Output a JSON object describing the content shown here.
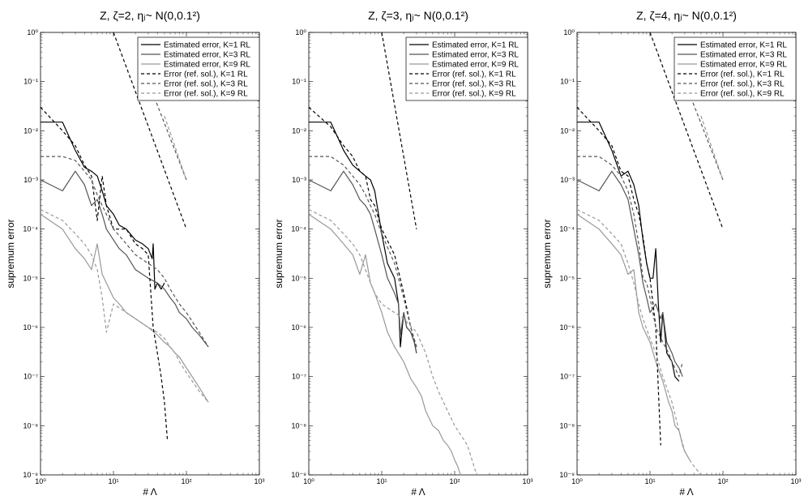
{
  "chart_data": [
    {
      "type": "line",
      "title": "Z, ζ=2, ηⱼ~ N(0,0.1²)",
      "xlabel": "# Λ",
      "ylabel": "supremum error",
      "xscale": "log",
      "yscale": "log",
      "xlim": [
        1,
        1000
      ],
      "ylim": [
        1e-09,
        1
      ],
      "x_ticks": [
        "10⁰",
        "10¹",
        "10²",
        "10³"
      ],
      "y_ticks": [
        "10⁻⁹",
        "10⁻⁸",
        "10⁻⁷",
        "10⁻⁶",
        "10⁻⁵",
        "10⁻⁴",
        "10⁻³",
        "10⁻²",
        "10⁻¹",
        "10⁰"
      ],
      "grid": false,
      "legend_position": "top-right",
      "series": [
        {
          "name": "Estimated error, K=1 RL",
          "color": "#000000",
          "dash": "solid",
          "x": [
            1,
            2,
            3,
            4,
            5,
            6,
            7,
            8,
            10,
            12,
            15,
            20,
            25,
            30,
            34,
            35,
            37,
            40,
            45,
            50
          ],
          "y": [
            0.015,
            0.015,
            0.004,
            0.0018,
            0.0015,
            0.0012,
            0.0006,
            0.0003,
            0.0002,
            0.00012,
            0.0001,
            6e-05,
            5e-05,
            4e-05,
            2.5e-05,
            5e-05,
            6e-06,
            8e-06,
            6e-06,
            8e-06
          ]
        },
        {
          "name": "Estimated error, K=3 RL",
          "color": "#555555",
          "dash": "solid",
          "x": [
            1,
            2,
            3,
            4,
            5,
            6,
            7,
            8,
            10,
            12,
            15,
            20,
            25,
            30,
            40,
            50,
            60,
            70,
            80,
            100,
            120,
            150,
            200
          ],
          "y": [
            0.001,
            0.0006,
            0.0015,
            0.0008,
            0.0003,
            0.0004,
            0.0002,
            0.0001,
            6e-05,
            4e-05,
            3e-05,
            1.5e-05,
            1.2e-05,
            1e-05,
            8e-06,
            6e-06,
            4e-06,
            3e-06,
            2e-06,
            1.5e-06,
            1e-06,
            7e-07,
            4e-07
          ]
        },
        {
          "name": "Estimated error, K=9 RL",
          "color": "#999999",
          "dash": "solid",
          "x": [
            1,
            2,
            3,
            4,
            5,
            6,
            7,
            8,
            10,
            12,
            15,
            20,
            25,
            30,
            40,
            50,
            60,
            70,
            80,
            100,
            150,
            200
          ],
          "y": [
            0.0002,
            0.0001,
            4e-05,
            2.5e-05,
            1.5e-05,
            5e-05,
            1.2e-05,
            8e-06,
            4e-06,
            3e-06,
            2e-06,
            1.5e-06,
            1.2e-06,
            1e-06,
            7e-07,
            5e-07,
            4e-07,
            3e-07,
            2.5e-07,
            1.5e-07,
            6e-08,
            3e-08
          ]
        },
        {
          "name": "Error (ref. sol.), K=1 RL",
          "color": "#000000",
          "dash": "dash",
          "x": [
            1,
            2,
            3,
            4,
            5,
            6,
            7,
            8,
            10,
            15,
            20,
            25,
            30,
            35,
            40,
            45,
            50,
            55
          ],
          "y": [
            0.03,
            0.01,
            0.005,
            0.002,
            0.0012,
            0.00015,
            0.0012,
            0.0003,
            0.0001,
            0.0001,
            5e-05,
            4e-05,
            3e-05,
            1e-06,
            3e-07,
            1e-07,
            3e-08,
            5e-09
          ]
        },
        {
          "name": "Error (ref. sol.), K=3 RL",
          "color": "#555555",
          "dash": "dash",
          "x": [
            1,
            2,
            3,
            4,
            5,
            6,
            7,
            8,
            10,
            15,
            20,
            30,
            40,
            50,
            60,
            80,
            100,
            150,
            200
          ],
          "y": [
            0.003,
            0.003,
            0.0025,
            0.0015,
            0.001,
            0.0005,
            0.0003,
            0.0002,
            0.0001,
            5e-05,
            3e-05,
            2e-05,
            1.5e-05,
            1e-05,
            6e-06,
            3e-06,
            2e-06,
            8e-07,
            4e-07
          ]
        },
        {
          "name": "Error (ref. sol.), K=9 RL",
          "color": "#999999",
          "dash": "dash",
          "x": [
            1,
            2,
            3,
            4,
            5,
            6,
            7,
            8,
            10,
            15,
            20,
            30,
            40,
            50,
            60,
            70,
            80,
            100,
            150,
            200
          ],
          "y": [
            0.00025,
            0.00015,
            8e-05,
            5e-05,
            3e-05,
            1.5e-05,
            4e-06,
            8e-07,
            3e-06,
            2e-06,
            1.5e-06,
            1e-06,
            8e-07,
            6e-07,
            4e-07,
            3e-07,
            2e-07,
            1.2e-07,
            5e-08,
            3e-08
          ]
        },
        {
          "color": "#000000",
          "dash": "dash",
          "x": [
            10,
            100
          ],
          "y": [
            1,
            0.0001
          ]
        },
        {
          "color": "#555555",
          "dash": "dash",
          "x": [
            30,
            100
          ],
          "y": [
            0.1,
            0.001
          ]
        },
        {
          "color": "#999999",
          "dash": "dash",
          "x": [
            50,
            100
          ],
          "y": [
            0.02,
            0.001
          ]
        }
      ]
    },
    {
      "type": "line",
      "title": "Z, ζ=3, ηⱼ~ N(0,0.1²)",
      "xlabel": "# Λ",
      "ylabel": "supremum error",
      "xscale": "log",
      "yscale": "log",
      "xlim": [
        1,
        1000
      ],
      "ylim": [
        1e-09,
        1
      ],
      "x_ticks": [
        "10⁰",
        "10¹",
        "10²",
        "10³"
      ],
      "y_ticks": [
        "10⁻⁹",
        "10⁻⁸",
        "10⁻⁷",
        "10⁻⁶",
        "10⁻⁵",
        "10⁻⁴",
        "10⁻³",
        "10⁻²",
        "10⁻¹",
        "10⁰"
      ],
      "grid": false,
      "legend_position": "top-right",
      "series": [
        {
          "name": "Estimated error, K=1 RL",
          "color": "#000000",
          "dash": "solid",
          "x": [
            1,
            2,
            3,
            4,
            5,
            6,
            7,
            8,
            10,
            12,
            15,
            17,
            18,
            20,
            22,
            25,
            28,
            30
          ],
          "y": [
            0.015,
            0.015,
            0.004,
            0.002,
            0.0015,
            0.0012,
            0.001,
            0.0006,
            8e-05,
            2e-05,
            1e-05,
            3e-06,
            4e-07,
            2e-06,
            1e-06,
            8e-07,
            5e-07,
            3e-07
          ]
        },
        {
          "name": "Estimated error, K=3 RL",
          "color": "#555555",
          "dash": "solid",
          "x": [
            1,
            2,
            3,
            4,
            5,
            6,
            7,
            8,
            10,
            12,
            15,
            17,
            18,
            20,
            22,
            25,
            28,
            30
          ],
          "y": [
            0.001,
            0.0006,
            0.0015,
            0.0008,
            0.0004,
            0.0003,
            0.0002,
            0.0001,
            3e-05,
            1e-05,
            5e-06,
            3e-06,
            7e-07,
            2e-06,
            1e-06,
            8e-07,
            5e-07,
            3e-07
          ]
        },
        {
          "name": "Estimated error, K=9 RL",
          "color": "#999999",
          "dash": "solid",
          "x": [
            1,
            2,
            3,
            4,
            5,
            6,
            7,
            8,
            10,
            12,
            15,
            20,
            25,
            30,
            35,
            40,
            50,
            60,
            70,
            80,
            90,
            100,
            110,
            120
          ],
          "y": [
            0.0002,
            0.0001,
            5e-05,
            3e-05,
            1.2e-05,
            3e-05,
            8e-06,
            5e-06,
            2e-06,
            8e-07,
            4e-07,
            2e-07,
            9e-08,
            6e-08,
            4e-08,
            2e-08,
            1e-08,
            8e-09,
            5e-09,
            4e-09,
            3e-09,
            2e-09,
            1.5e-09,
            1e-09
          ]
        },
        {
          "name": "Error (ref. sol.), K=1 RL",
          "color": "#000000",
          "dash": "dash",
          "x": [
            1,
            2,
            3,
            4,
            5,
            6,
            7,
            8,
            10,
            15,
            20,
            25,
            30
          ],
          "y": [
            0.03,
            0.012,
            0.005,
            0.003,
            0.0015,
            0.0012,
            0.0004,
            0.0003,
            0.0001,
            3e-05,
            5e-06,
            1e-06,
            4e-07
          ]
        },
        {
          "name": "Error (ref. sol.), K=3 RL",
          "color": "#555555",
          "dash": "dash",
          "x": [
            1,
            2,
            3,
            4,
            5,
            6,
            7,
            8,
            10,
            15,
            20,
            25,
            30
          ],
          "y": [
            0.003,
            0.003,
            0.002,
            0.0012,
            0.0008,
            0.0005,
            0.0003,
            0.0002,
            8e-05,
            2e-05,
            4e-06,
            1e-06,
            4e-07
          ]
        },
        {
          "name": "Error (ref. sol.), K=9 RL",
          "color": "#999999",
          "dash": "dash",
          "x": [
            1,
            2,
            3,
            4,
            5,
            6,
            7,
            8,
            10,
            15,
            20,
            30,
            40,
            50,
            60,
            80,
            100,
            150,
            200
          ],
          "y": [
            0.00025,
            0.00015,
            8e-05,
            5e-05,
            3e-05,
            1.5e-05,
            8e-06,
            5e-06,
            3e-06,
            2e-06,
            1.5e-06,
            8e-07,
            3e-07,
            1e-07,
            5e-08,
            2e-08,
            1e-08,
            4e-09,
            1e-09
          ]
        },
        {
          "color": "#000000",
          "dash": "dash",
          "x": [
            10,
            30
          ],
          "y": [
            1,
            0.0001
          ]
        }
      ]
    },
    {
      "type": "line",
      "title": "Z, ζ=4, ηⱼ~ N(0,0.1²)",
      "xlabel": "# Λ",
      "ylabel": "supremum error",
      "xscale": "log",
      "yscale": "log",
      "xlim": [
        1,
        1000
      ],
      "ylim": [
        1e-09,
        1
      ],
      "x_ticks": [
        "10⁰",
        "10¹",
        "10²",
        "10³"
      ],
      "y_ticks": [
        "10⁻⁹",
        "10⁻⁸",
        "10⁻⁷",
        "10⁻⁶",
        "10⁻⁵",
        "10⁻⁴",
        "10⁻³",
        "10⁻²",
        "10⁻¹",
        "10⁰"
      ],
      "grid": false,
      "legend_position": "top-right",
      "series": [
        {
          "name": "Estimated error, K=1 RL",
          "color": "#000000",
          "dash": "solid",
          "x": [
            1,
            2,
            3,
            4,
            5,
            6,
            7,
            8,
            9,
            10,
            11,
            12,
            13,
            14,
            15,
            17,
            20,
            22,
            25
          ],
          "y": [
            0.015,
            0.015,
            0.004,
            0.0012,
            0.0015,
            0.0008,
            0.0003,
            6e-05,
            2e-05,
            1e-05,
            1e-05,
            4e-05,
            3e-06,
            5e-07,
            2e-06,
            3e-07,
            2e-07,
            1e-07,
            8e-08
          ]
        },
        {
          "name": "Estimated error, K=3 RL",
          "color": "#555555",
          "dash": "solid",
          "x": [
            1,
            2,
            3,
            4,
            5,
            6,
            7,
            8,
            9,
            10,
            12,
            14,
            15,
            17,
            20,
            22,
            25,
            28
          ],
          "y": [
            0.001,
            0.0006,
            0.0015,
            0.0008,
            0.0004,
            0.0001,
            3e-05,
            8e-06,
            4e-06,
            2e-06,
            3e-06,
            1.5e-06,
            2e-06,
            5e-07,
            3e-07,
            2e-07,
            1.5e-07,
            1e-07
          ]
        },
        {
          "name": "Estimated error, K=9 RL",
          "color": "#999999",
          "dash": "solid",
          "x": [
            1,
            2,
            3,
            4,
            5,
            6,
            7,
            8,
            10,
            12,
            15,
            18,
            20,
            22,
            25,
            28,
            30,
            35
          ],
          "y": [
            0.0002,
            0.0001,
            5e-05,
            3e-05,
            1.2e-05,
            1.5e-05,
            2e-06,
            1e-06,
            5e-07,
            2e-07,
            8e-08,
            3e-08,
            2e-08,
            1e-08,
            8e-09,
            4e-09,
            3e-09,
            2e-09
          ]
        },
        {
          "name": "Error (ref. sol.), K=1 RL",
          "color": "#000000",
          "dash": "dash",
          "x": [
            1,
            2,
            3,
            4,
            5,
            6,
            7,
            8,
            9,
            10,
            12,
            14
          ],
          "y": [
            0.03,
            0.01,
            0.005,
            0.0015,
            0.0012,
            0.0004,
            0.0002,
            7e-05,
            2e-05,
            1e-05,
            1e-06,
            4e-09
          ]
        },
        {
          "name": "Error (ref. sol.), K=3 RL",
          "color": "#555555",
          "dash": "dash",
          "x": [
            1,
            2,
            3,
            4,
            5,
            6,
            7,
            8,
            9,
            10,
            12,
            15,
            18,
            20,
            25,
            28
          ],
          "y": [
            0.003,
            0.003,
            0.002,
            0.0012,
            0.0006,
            0.0002,
            5e-05,
            1e-05,
            8e-06,
            4e-06,
            1e-06,
            5e-07,
            3e-07,
            2e-07,
            1e-07,
            2e-07
          ]
        },
        {
          "name": "Error (ref. sol.), K=9 RL",
          "color": "#999999",
          "dash": "dash",
          "x": [
            1,
            2,
            3,
            4,
            5,
            6,
            7,
            8,
            10,
            12,
            15,
            20,
            25,
            30,
            35,
            40,
            50
          ],
          "y": [
            0.00025,
            0.00015,
            8e-05,
            5e-05,
            2e-05,
            8e-06,
            3e-06,
            1.5e-06,
            6e-07,
            3e-07,
            1e-07,
            3e-08,
            8e-09,
            3e-09,
            2e-09,
            1.5e-09,
            1e-09
          ]
        },
        {
          "color": "#000000",
          "dash": "dash",
          "x": [
            10,
            100
          ],
          "y": [
            1,
            0.0001
          ]
        },
        {
          "color": "#555555",
          "dash": "dash",
          "x": [
            30,
            100
          ],
          "y": [
            0.1,
            0.001
          ]
        },
        {
          "color": "#999999",
          "dash": "dash",
          "x": [
            50,
            100
          ],
          "y": [
            0.02,
            0.001
          ]
        }
      ]
    }
  ]
}
